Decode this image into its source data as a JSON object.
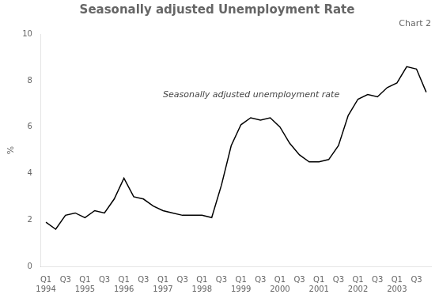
{
  "chart_data": {
    "type": "line",
    "title": "Seasonally adjusted Unemployment Rate",
    "subtitle": "Chart 2",
    "y_label": "%",
    "categories": [
      [
        "Q1",
        "1994"
      ],
      null,
      "Q3",
      null,
      [
        "Q1",
        "1995"
      ],
      null,
      "Q3",
      null,
      [
        "Q1",
        "1996"
      ],
      null,
      "Q3",
      null,
      [
        "Q1",
        "1997"
      ],
      null,
      "Q3",
      null,
      [
        "Q1",
        "1998"
      ],
      null,
      "Q3",
      null,
      [
        "Q1",
        "1999"
      ],
      null,
      "Q3",
      null,
      [
        "Q1",
        "2000"
      ],
      null,
      "Q3",
      null,
      [
        "Q1",
        "2001"
      ],
      null,
      "Q3",
      null,
      [
        "Q1",
        "2002"
      ],
      null,
      "Q3",
      null,
      [
        "Q1",
        "2003"
      ],
      null,
      "Q3",
      null
    ],
    "values": [
      1.9,
      1.6,
      2.2,
      2.3,
      2.1,
      2.4,
      2.3,
      2.9,
      3.8,
      3.0,
      2.9,
      2.6,
      2.4,
      2.3,
      2.2,
      2.2,
      2.2,
      2.1,
      3.5,
      5.2,
      6.1,
      6.4,
      6.3,
      6.4,
      6.0,
      5.3,
      4.8,
      4.5,
      4.5,
      4.6,
      5.2,
      6.5,
      7.2,
      7.4,
      7.3,
      7.7,
      7.9,
      8.6,
      8.5,
      7.5
    ],
    "color": "#000000",
    "ylim": [
      0,
      10
    ],
    "yticks": [
      0,
      2,
      4,
      6,
      8,
      10
    ],
    "grid": false,
    "annotations": [
      {
        "text": "Seasonally adjusted unemployment rate",
        "x": 12,
        "y": 7.2
      }
    ]
  }
}
